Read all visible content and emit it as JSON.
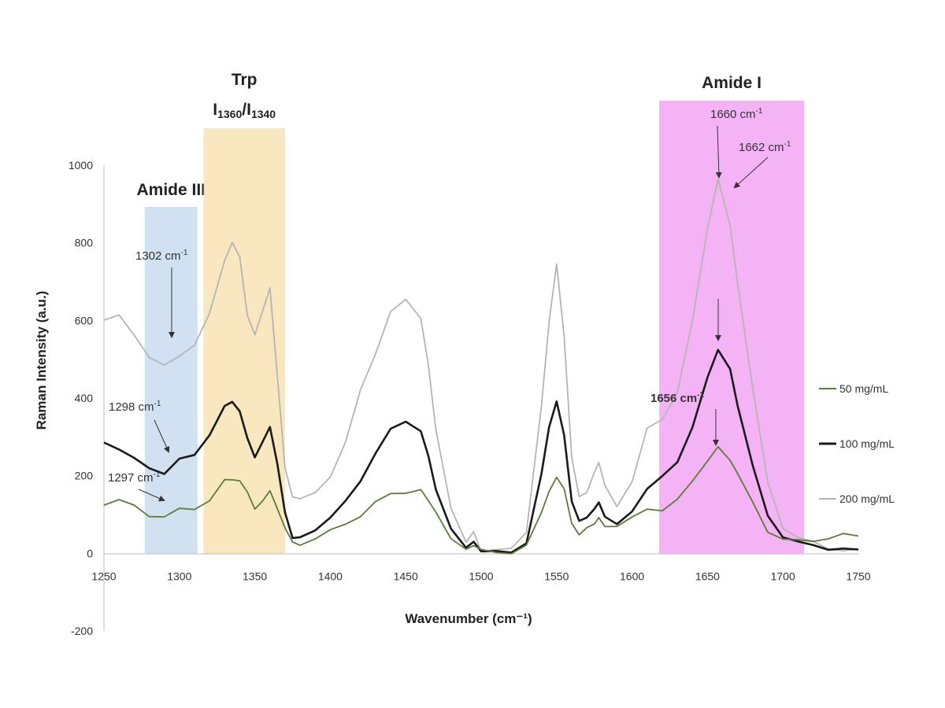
{
  "chart_data": {
    "type": "line",
    "xlabel": "Wavenumber (cm⁻¹)",
    "ylabel": "Raman Intensity (a.u.)",
    "xlim": [
      1250,
      1750
    ],
    "ylim": [
      -200,
      1000
    ],
    "x_ticks": [
      "1250",
      "1300",
      "1350",
      "1400",
      "1450",
      "1500",
      "1550",
      "1600",
      "1650",
      "1700",
      "1750"
    ],
    "y_ticks": [
      "-200",
      "0",
      "200",
      "400",
      "600",
      "800",
      "1000"
    ],
    "grid": false,
    "legend_position": "right",
    "regions": [
      {
        "lines": [
          "Amide III"
        ],
        "x_range": [
          1277,
          1312
        ],
        "color": "#c9dcee"
      },
      {
        "lines": [
          "Trp",
          "I1360/I1340"
        ],
        "x_range": [
          1316,
          1370
        ],
        "color": "#f7e3b4"
      },
      {
        "lines": [
          "Amide I"
        ],
        "x_range": [
          1618,
          1714
        ],
        "color": "#f2a6f2"
      }
    ],
    "annotations": [
      {
        "text": "1302 cm⁻¹",
        "bold": false
      },
      {
        "text": "1298 cm⁻¹",
        "bold": false
      },
      {
        "text": "1297 cm⁻¹",
        "bold": false
      },
      {
        "text": "1660 cm⁻¹",
        "bold": false
      },
      {
        "text": "1662 cm⁻¹",
        "bold": false
      },
      {
        "text": "1656 cm⁻¹",
        "bold": true
      }
    ],
    "series": [
      {
        "name": "50 mg/mL",
        "color": "#5a7d3a",
        "x": [
          1250,
          1260,
          1270,
          1280,
          1290,
          1300,
          1310,
          1320,
          1330,
          1335,
          1340,
          1345,
          1350,
          1355,
          1360,
          1365,
          1370,
          1375,
          1380,
          1390,
          1400,
          1410,
          1420,
          1430,
          1440,
          1450,
          1460,
          1465,
          1470,
          1480,
          1490,
          1495,
          1500,
          1510,
          1520,
          1530,
          1540,
          1545,
          1550,
          1555,
          1560,
          1565,
          1570,
          1575,
          1578,
          1582,
          1590,
          1600,
          1610,
          1620,
          1630,
          1640,
          1650,
          1657,
          1665,
          1670,
          1680,
          1690,
          1700,
          1710,
          1720,
          1730,
          1740,
          1750
        ],
        "y": [
          130,
          135,
          120,
          100,
          95,
          110,
          115,
          140,
          185,
          195,
          185,
          155,
          120,
          130,
          160,
          120,
          60,
          30,
          25,
          40,
          55,
          75,
          100,
          130,
          150,
          160,
          165,
          140,
          100,
          40,
          15,
          20,
          5,
          0,
          5,
          20,
          100,
          160,
          200,
          160,
          80,
          50,
          60,
          80,
          90,
          70,
          75,
          90,
          110,
          115,
          140,
          180,
          240,
          280,
          240,
          200,
          130,
          60,
          35,
          30,
          35,
          40,
          45,
          45
        ]
      },
      {
        "name": "100 mg/mL",
        "color": "#1a1a1a",
        "x": [
          1250,
          1260,
          1270,
          1280,
          1290,
          1300,
          1310,
          1320,
          1330,
          1335,
          1340,
          1345,
          1350,
          1355,
          1360,
          1365,
          1370,
          1375,
          1380,
          1390,
          1400,
          1410,
          1420,
          1430,
          1440,
          1450,
          1460,
          1465,
          1470,
          1480,
          1490,
          1495,
          1500,
          1510,
          1520,
          1530,
          1540,
          1545,
          1550,
          1555,
          1560,
          1565,
          1570,
          1575,
          1578,
          1582,
          1590,
          1600,
          1610,
          1620,
          1630,
          1640,
          1650,
          1657,
          1665,
          1670,
          1680,
          1690,
          1700,
          1710,
          1720,
          1730,
          1740,
          1750
        ],
        "y": [
          290,
          270,
          240,
          220,
          210,
          240,
          250,
          310,
          380,
          395,
          360,
          300,
          250,
          280,
          330,
          230,
          100,
          45,
          40,
          65,
          90,
          130,
          190,
          260,
          315,
          340,
          320,
          250,
          160,
          60,
          20,
          25,
          5,
          0,
          5,
          30,
          200,
          330,
          390,
          300,
          140,
          80,
          90,
          120,
          135,
          100,
          80,
          110,
          160,
          200,
          240,
          320,
          450,
          525,
          470,
          380,
          220,
          100,
          45,
          25,
          20,
          15,
          10,
          5
        ]
      },
      {
        "name": "200 mg/mL",
        "color": "#b5b5b5",
        "x": [
          1250,
          1260,
          1270,
          1280,
          1290,
          1300,
          1310,
          1320,
          1330,
          1335,
          1340,
          1345,
          1350,
          1355,
          1360,
          1365,
          1370,
          1375,
          1380,
          1390,
          1400,
          1410,
          1420,
          1430,
          1440,
          1450,
          1460,
          1465,
          1470,
          1480,
          1490,
          1495,
          1500,
          1510,
          1520,
          1530,
          1540,
          1545,
          1550,
          1555,
          1560,
          1565,
          1570,
          1575,
          1578,
          1582,
          1590,
          1600,
          1610,
          1620,
          1630,
          1640,
          1650,
          1657,
          1665,
          1670,
          1680,
          1690,
          1700,
          1710,
          1720,
          1730,
          1740,
          1750
        ],
        "y": [
          600,
          620,
          560,
          500,
          490,
          510,
          530,
          620,
          760,
          800,
          760,
          620,
          560,
          620,
          690,
          450,
          220,
          150,
          135,
          160,
          200,
          280,
          420,
          520,
          620,
          650,
          610,
          480,
          320,
          110,
          30,
          50,
          10,
          5,
          10,
          60,
          380,
          600,
          740,
          560,
          250,
          140,
          160,
          210,
          240,
          180,
          120,
          190,
          320,
          340,
          420,
          600,
          830,
          960,
          840,
          700,
          420,
          180,
          70,
          40,
          25,
          15,
          10,
          5
        ]
      }
    ]
  }
}
